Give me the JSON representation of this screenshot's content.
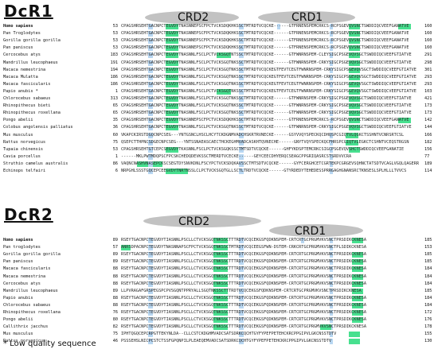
{
  "dcr1": {
    "title": "DcR1",
    "domains": [
      {
        "label": "CRD2"
      },
      {
        "label": "CRD1"
      }
    ],
    "rows": [
      {
        "name": "Homo sapiens",
        "bold": true,
        "start": "53",
        "seq": "CPAGSHRSEHTGACNPCTEGVDYTNASNNEPSCFPCTVCKSDQKHKSSCTMTRDTVCQCKE------GTFRNENSPEMCRKCS-RCPSGEVQVSNCTSWDDIQCVEEFGANATVE",
        "end": "160"
      },
      {
        "name": "Pan Troglodytes",
        "bold": false,
        "start": "53",
        "seq": "CPAGSHRSEHTGACNPCTEGVDYTNASNNEPSCFPCTVCKSDQKHKSSCTMTRDTVCQCKE------GTFRNENSPEMCRKCS-RCPSGEVQVSNCTSWDDIQCVEEFGANATVE",
        "end": "160"
      },
      {
        "name": "Gorilla gorilla gorilla",
        "bold": false,
        "start": "53",
        "seq": "CPAGSHRSEHTGACNPCTEGVDYTNASNNEPSCFPCTVCKSDQKHKSSCTMTRDTVCQCKE------GTFRNENSPEMCRKCS-RCPSGEVQVSNCTSWDDIQCVEEFGANATVE",
        "end": "160"
      },
      {
        "name": "Pan paniscus",
        "bold": false,
        "start": "53",
        "seq": "CPAGSHRSEHTGACNPCTEGVDYTNASNNEPSCFPCTVCKSDQKHKSSCTMTRDTVCQCKE------GTFRNENSPEMCRKCS-RCPSGEVQVSNCTSWDDIQCVEEFGANATVE",
        "end": "160"
      },
      {
        "name": "Cercocebus atys",
        "bold": false,
        "start": "183",
        "seq": "CPAGSHRSEHTGACNPCTEGVDYTNASNNLFSCLPCTVCKSGQTNTSSCTMTRDTVCQCKE------GTFWNRNSPEM-CLEYSIGCPSGEVQVSGCTSWDDIQCVEEFGTIATVE",
        "end": "291"
      },
      {
        "name": "Mandrillus leucophaeus",
        "bold": false,
        "start": "191",
        "seq": "CPAGSHRSEHTGACNPCTEGVDYTNASNNLFSCLPCTVCKSGQTNKSSCTMTRDTVCQCKE------GTFWNRNSPEM-CRKYSIGCPSGEVQVSGCTSWDDIQCVEEFGTIATVE",
        "end": "298"
      },
      {
        "name": "Macaca nemestrina",
        "bold": false,
        "start": "194",
        "seq": "CPAGSHRSEHTGACNPCTEGVDYTNASNNLFSCLPCTVCKSGQTNKSSCTMTRDTVCQCKEGTFEVTCEGTFWNRNSPEM-CRKYSIGCPSGEVQVSGCTSWDDIQCVEEFGTIATVE",
        "end": "301"
      },
      {
        "name": "Macaca Mulatta",
        "bold": false,
        "start": "186",
        "seq": "CPAGSHRSEHTGACNPCTEGVDYTNASNNLFSCLPCTVCKSGQTNKSSCTMTRDTVCQCKEGTFEVTCEGTFWNRNSPEM-CRKYSIGCPSGEVQVSGCTSWDDIQCVEEFGTIATVE",
        "end": "293"
      },
      {
        "name": "Macaca fascicularis",
        "bold": false,
        "start": "186",
        "seq": "CPAGSHRSEHTGACNPCTEGVDYTNASNNLFSCLPCTVCKSGQTNKSSCTMTRDTVCQCKEGTFEVTCEGTFWNRNSPEM-CRKYSIGCPSGEVQVSGCTSWDDIQCVEEFGTIATVE",
        "end": "293"
      },
      {
        "name": "Papio anubis *",
        "bold": false,
        "start": "1",
        "seq": "CPAGSHRSEHTGACNPCTEGVDYTNASNNLFSCLPCTVCKSGQTNKSSCTMTRDTVCQCKEGTFEVTCEGTFWNRNSPEM-CRKYSIGCPSGEVQVSGCTSWDDIQCVEEFGTIATVE",
        "end": "103"
      },
      {
        "name": "Chlorocebus sabaeus",
        "bold": false,
        "start": "313",
        "seq": "CPAGSHRSEHTGACNPCTEGVDYTNASNNLFSCLPCTVCKSGQTNKSSCTMTRDTVCQCKE------GTFWNRNSPEM-CRKYSIGCPSGEVQVSGCTSWDDIQCVEEFGTIATVE",
        "end": "421"
      },
      {
        "name": "Rhinopithecus bieti",
        "bold": false,
        "start": "65",
        "seq": "CPAGSHRSEHTGACNPCTEGVDYTNASNNLFSCLPCTVCKSGQTNKSSCTMTRDTVCQCKE------GTFWNRNSPEM-CRKYSIGCPSGEVQVSGCTSWDDIQCVEEFGTIATVE",
        "end": "173"
      },
      {
        "name": "Rhinopithecus roxellana",
        "bold": false,
        "start": "65",
        "seq": "CPAGSHRSEHTGACNPCTEGVDYTNASNNLFSCLPCTVCKSGQTNKSSCTMTRDTVCQCKE------GTFWNRNSPEM-CRKYSIGCPSGEVQVSGCTSWDDIQCVEEFGTIATVE",
        "end": "173"
      },
      {
        "name": "Pongo abelii",
        "bold": false,
        "start": "35",
        "seq": "CPAGSHRSEHTGACNPCTEGVDYTNASNNEPSCFPCTVCKSDQKHKSSCTMTRDTVCQCKE------GTFRNENSPEMCRKCS-RCPSGEVQVSNCTSWDDIQCVEEFGANATVE",
        "end": "142"
      },
      {
        "name": "Colobus angolensis palliatus",
        "bold": false,
        "start": "36",
        "seq": "CPAGSHRSEHTGACNPCTEGVDYTNASNNLFSCLPCTVCKSGQTNKSSCTMTRDTVCQCKE------GTFWNRNSPEM-CRKYSIGCPSGEVQVSGCTSWDDIQCVEEFGTIATVE",
        "end": "144"
      },
      {
        "name": "Mus musculus",
        "bold": false,
        "start": "60",
        "seq": "VKAPCKIRSTDGQCNPCSEG---YNTGSNCLHSCLHCYTCKDGNMVADCHSKRTRVNECKE------GSYVVQYSPECKQCDHQSPCGIQTVLQGKCTSSHNTVCNRSRTCSL",
        "end": "166"
      },
      {
        "name": "Rattus norvegicus",
        "bold": false,
        "start": "75",
        "seq": "QSEPCTTHPNCSDGECNPCSEG---YNTSSNAEASCAECTHCKEGHMVADCASKHTQVNECHE------GNYTVQYSPECKQCFHRSPCGIQTVLEGKCTCSHNTVCEQSTRGSN",
        "end": "182"
      },
      {
        "name": "Tupaia chinensis",
        "bold": false,
        "start": "53",
        "seq": "CPAGSHRSEHTGTCEPCSEGVDYTKASNNLFSCLPCTVCKSGQKSSCTMTSDTVCQCKE------GHFYKDSPTEMCRKCSIGCPSGEVQVSHCTSWDDIQCVEEFGANATIE",
        "end": "156"
      },
      {
        "name": "Cavia porcellus",
        "bold": false,
        "start": "1",
        "seq": "------MKLPWTMDQPSCFPCSKCHEDQDEVKSSCTMERDTVCECKE------GEYCEECDHYERQCSEAGCPPGRIQASRCSTSRDVVCRA",
        "end": "77"
      },
      {
        "name": "Struthio camelus australis",
        "bold": false,
        "start": "86",
        "seq": "VAQNCNASHVNASEPCKSCSEGTDYSNVKDNLFSCYPCTVCKSDQKAVSSCTMTSDTVCQCKE------GYFCERGHCETCGRTEKPCGRGEVSQHNCTATSDTVCAGLVGQLQAGERR",
        "end": "189"
      },
      {
        "name": "Echinops telfairi",
        "bold": false,
        "start": "6",
        "seq": "NRPGHLSSSTGQCEPCEEGVDYTNRTNSSLCLPCTVCKSGQTGLLSCTLTRDTVCQCKE------GTYRDEDYTEHEDESSPRRGAGHGNANSRCTKNSESLSPLHLLLTVVCS",
        "end": "114"
      }
    ]
  },
  "dcr2": {
    "title": "DcR2",
    "domains": [
      {
        "label": "CRD2"
      },
      {
        "label": "CRD1"
      }
    ],
    "rows": [
      {
        "name": "Homo sapiens",
        "bold": true,
        "start": "89",
        "seq": "RSEYTGACNPCTEGVDYTIASNNLPSCLLCTVCKSGQTNKSSCTTTRDTVCQCEKGSFQDKNSPEM-CRTCRTGCPRGMVKVSNCTPRSDIKCKNESA",
        "end": "185"
      },
      {
        "name": "Pan troglodytes",
        "bold": false,
        "start": "57",
        "seq": "ANRSDPACNPCTEGVDYTNASNNAPSCFPCTVCKSGQTNKSSCTMTRDTVCQCEEGSFWN-DSTEM-CRKCRTGCPRGMVKVSNCTPLSDIKCKNESA",
        "end": "153"
      },
      {
        "name": "Gorilla gorilla gorilla",
        "bold": false,
        "start": "89",
        "seq": "RSEYTGACNPCTEGVDYTIASNNLPSCLLCTVCKSGQTNKSSCTTTRDTVCQCEKGSFQDKNSPEM-CRTCRTGCPRGMVKVSNCTPRSDIKCKNESA",
        "end": "185"
      },
      {
        "name": "Pan paniscus",
        "bold": false,
        "start": "89",
        "seq": "RSEYTGACNPCTEGVDYTIASNNLPSCLLCTVCKSGQTNKSSCTTTRDTVCQCEKGSFQDKNSPEM-CRTCRTGCPRGMVKVSNCTPRSDIKCKNESA",
        "end": "185"
      },
      {
        "name": "Macaca fascicularis",
        "bold": false,
        "start": "88",
        "seq": "RSEYTGACNPCTEGVDYTIASNNLPSCLLCTVCKSGQTNKSSCTTTRDTVCQCEKGSFQDKNSPEM-CRTCRTGCPRGMVKVSNCTPRSDIKCKNESA",
        "end": "184"
      },
      {
        "name": "Macaca nemestrina",
        "bold": false,
        "start": "88",
        "seq": "RSEYTGACNPCTEGVDYTIASNNLPSCLLCTVCKSGQTNKSSCTTTRDTVCQCEKGSFQDKNSPEM-CRTCRTGCPRGMVKVSNCTPRSDIKCKNESA",
        "end": "184"
      },
      {
        "name": "Cercocebus atys",
        "bold": false,
        "start": "88",
        "seq": "RSEYTGACNPCTEGVDYTIASNNLPSCLLCTVCKSGQTNKSSCTTTRDTVCQCEKGSFQDKNSPEM-CRTCRTGCPRGMVKVSNCTPRSDIKCKNESA",
        "end": "184"
      },
      {
        "name": "Mandrillus leucophaeus",
        "bold": false,
        "start": "89",
        "seq": "LLPVRAGAFGRSPEGSPCPVSGQNTPPRYALLSGQTNKSSCTTTRDTVCQCEKGSFQDKNSPEM-CRTCRTGCPRGMVKVSNCTPRSDIKCKNESA",
        "end": "185"
      },
      {
        "name": "Papio anubis",
        "bold": false,
        "start": "88",
        "seq": "RSEYTGACNPCTEGVDYTIASNNLPSCLLCTVCKSGQTNKSSCTTTRDTVCQCEKGSFQDKNSPEM-CRTCRTGCPRGMVKVSNCTPRSDIKCKNESA",
        "end": "184"
      },
      {
        "name": "Chlorocebus sabaeus",
        "bold": false,
        "start": "88",
        "seq": "RSEYTGACNPCTEGVDYTIASNNLPSCLLCTVCKSGQTNKSSCTTTRDTVCQCEKGSFQDKNSPEM-CRTCRTGCPRGMVKVSNCTPRSDIKCKNESA",
        "end": "184"
      },
      {
        "name": "Rhinopithecus roxellana",
        "bold": false,
        "start": "76",
        "seq": "RSEYTGACNPCTEGVDYTIASNNLPSCLLCTVCKSGQTNKSSCTTTRDTVCQCEKGSFQDKNSPEM-CRTCRTGCPRGMVKVSNCTPRSDIKCKNESA",
        "end": "172"
      },
      {
        "name": "Pongo abelii",
        "bold": false,
        "start": "80",
        "seq": "RSEYTGACNPCTEGVDYTIASNNLPSCLLCTVCKSGQTNKSSCTTTRDTVCQCEKGSFQDKNSPEM-CRTCRTGCPRGMVKVSNCTPRSDIKCKNESA",
        "end": "176"
      },
      {
        "name": "Callithrix jacchus",
        "bold": false,
        "start": "82",
        "seq": "RSEYTGACNPCTEGVDYTIASNNLPSCLLCTVCKSGQTNKSSCTTTRDTVCQCEKGSFQDKNSPEM-CRTCRTGCPRGMVKVSNCTPRSDIKCKNESA",
        "end": "178"
      },
      {
        "name": "Mus musculus",
        "bold": false,
        "start": "75",
        "seq": "IPHTQGQCEPCRPGTTEKYNLDA--CLLCSTCKDGHMVADCSATSDRKCQCHTGYFYPEFPETEHCKRCPPGIPVLGKCNSSTDTV",
        "end": "155"
      },
      {
        "name": "Rattus norvegicus",
        "bold": false,
        "start": "46",
        "seq": "PSSSEHSLNICPCSTCTSSFGPQNPILPLEAEQEMVADCSATSDRKCQCHTGYFYPEFPETEHCKRCPPGIPVLGKCNSSTDTV",
        "end": "130"
      }
    ]
  },
  "footnote": "* Low quality sequence",
  "colors": {
    "conserved": "#47e08f",
    "cysteine_block": "#b8d7f2",
    "domain_marker": "#c2c2c2"
  }
}
